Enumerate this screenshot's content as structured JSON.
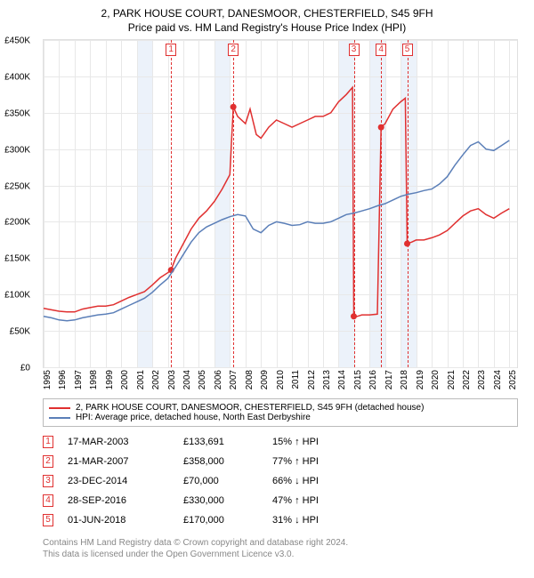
{
  "title": {
    "line1": "2, PARK HOUSE COURT, DANESMOOR, CHESTERFIELD, S45 9FH",
    "line2": "Price paid vs. HM Land Registry's House Price Index (HPI)",
    "fontsize": 12,
    "color": "#000000"
  },
  "chart": {
    "type": "line",
    "background_color": "#ffffff",
    "grid_color": "#e8e8e8",
    "axis_color": "#e0e0e0",
    "shade_color": "#ecf2fa",
    "xlim": [
      1995,
      2025.5
    ],
    "ylim": [
      0,
      450000
    ],
    "ytick_step": 50000,
    "yticks": [
      0,
      50000,
      100000,
      150000,
      200000,
      250000,
      300000,
      350000,
      400000,
      450000
    ],
    "ytick_labels": [
      "£0",
      "£50K",
      "£100K",
      "£150K",
      "£200K",
      "£250K",
      "£300K",
      "£350K",
      "£400K",
      "£450K"
    ],
    "xticks": [
      1995,
      1996,
      1997,
      1998,
      1999,
      2000,
      2001,
      2002,
      2003,
      2004,
      2005,
      2006,
      2007,
      2008,
      2009,
      2010,
      2011,
      2012,
      2013,
      2014,
      2015,
      2016,
      2017,
      2018,
      2019,
      2020,
      2021,
      2022,
      2023,
      2024,
      2025
    ],
    "label_fontsize": 10,
    "shade_bands": [
      [
        2001,
        2002
      ],
      [
        2006,
        2007
      ],
      [
        2014,
        2015
      ],
      [
        2016,
        2017
      ],
      [
        2018,
        2019
      ]
    ],
    "series": [
      {
        "name": "price_paid",
        "color": "#e03030",
        "width": 1.5,
        "legend": "2, PARK HOUSE COURT, DANESMOOR, CHESTERFIELD, S45 9FH (detached house)",
        "points": [
          [
            1995.0,
            81000
          ],
          [
            1995.5,
            79000
          ],
          [
            1996.0,
            77000
          ],
          [
            1996.5,
            76000
          ],
          [
            1997.0,
            76000
          ],
          [
            1997.5,
            80000
          ],
          [
            1998.0,
            82000
          ],
          [
            1998.5,
            84000
          ],
          [
            1999.0,
            84000
          ],
          [
            1999.5,
            86000
          ],
          [
            2000.0,
            91000
          ],
          [
            2000.5,
            96000
          ],
          [
            2001.0,
            100000
          ],
          [
            2001.5,
            104000
          ],
          [
            2002.0,
            113000
          ],
          [
            2002.5,
            123000
          ],
          [
            2003.0,
            130000
          ],
          [
            2003.21,
            133691
          ],
          [
            2003.5,
            150000
          ],
          [
            2004.0,
            170000
          ],
          [
            2004.5,
            190000
          ],
          [
            2005.0,
            205000
          ],
          [
            2005.5,
            215000
          ],
          [
            2006.0,
            228000
          ],
          [
            2006.5,
            245000
          ],
          [
            2007.0,
            265000
          ],
          [
            2007.22,
            358000
          ],
          [
            2007.5,
            345000
          ],
          [
            2008.0,
            335000
          ],
          [
            2008.3,
            355000
          ],
          [
            2008.7,
            320000
          ],
          [
            2009.0,
            315000
          ],
          [
            2009.5,
            330000
          ],
          [
            2010.0,
            340000
          ],
          [
            2010.5,
            335000
          ],
          [
            2011.0,
            330000
          ],
          [
            2011.5,
            335000
          ],
          [
            2012.0,
            340000
          ],
          [
            2012.5,
            345000
          ],
          [
            2013.0,
            345000
          ],
          [
            2013.5,
            350000
          ],
          [
            2014.0,
            365000
          ],
          [
            2014.5,
            375000
          ],
          [
            2014.9,
            385000
          ],
          [
            2014.98,
            70000
          ],
          [
            2015.2,
            70000
          ],
          [
            2015.5,
            72000
          ],
          [
            2016.0,
            72000
          ],
          [
            2016.5,
            73000
          ],
          [
            2016.74,
            330000
          ],
          [
            2017.0,
            335000
          ],
          [
            2017.5,
            355000
          ],
          [
            2018.0,
            365000
          ],
          [
            2018.3,
            370000
          ],
          [
            2018.42,
            170000
          ],
          [
            2018.7,
            172000
          ],
          [
            2019.0,
            175000
          ],
          [
            2019.5,
            175000
          ],
          [
            2020.0,
            178000
          ],
          [
            2020.5,
            182000
          ],
          [
            2021.0,
            188000
          ],
          [
            2021.5,
            198000
          ],
          [
            2022.0,
            208000
          ],
          [
            2022.5,
            215000
          ],
          [
            2023.0,
            218000
          ],
          [
            2023.5,
            210000
          ],
          [
            2024.0,
            205000
          ],
          [
            2024.5,
            212000
          ],
          [
            2025.0,
            218000
          ]
        ],
        "markers": [
          {
            "x": 2003.21,
            "y": 133691
          },
          {
            "x": 2007.22,
            "y": 358000
          },
          {
            "x": 2014.98,
            "y": 70000
          },
          {
            "x": 2016.74,
            "y": 330000
          },
          {
            "x": 2018.42,
            "y": 170000
          }
        ]
      },
      {
        "name": "hpi",
        "color": "#5b7fb8",
        "width": 1.5,
        "legend": "HPI: Average price, detached house, North East Derbyshire",
        "points": [
          [
            1995.0,
            70000
          ],
          [
            1995.5,
            68000
          ],
          [
            1996.0,
            65000
          ],
          [
            1996.5,
            64000
          ],
          [
            1997.0,
            65000
          ],
          [
            1997.5,
            68000
          ],
          [
            1998.0,
            70000
          ],
          [
            1998.5,
            72000
          ],
          [
            1999.0,
            73000
          ],
          [
            1999.5,
            75000
          ],
          [
            2000.0,
            80000
          ],
          [
            2000.5,
            85000
          ],
          [
            2001.0,
            90000
          ],
          [
            2001.5,
            95000
          ],
          [
            2002.0,
            103000
          ],
          [
            2002.5,
            113000
          ],
          [
            2003.0,
            122000
          ],
          [
            2003.5,
            138000
          ],
          [
            2004.0,
            155000
          ],
          [
            2004.5,
            172000
          ],
          [
            2005.0,
            185000
          ],
          [
            2005.5,
            193000
          ],
          [
            2006.0,
            198000
          ],
          [
            2006.5,
            203000
          ],
          [
            2007.0,
            207000
          ],
          [
            2007.5,
            210000
          ],
          [
            2008.0,
            208000
          ],
          [
            2008.5,
            190000
          ],
          [
            2009.0,
            185000
          ],
          [
            2009.5,
            195000
          ],
          [
            2010.0,
            200000
          ],
          [
            2010.5,
            198000
          ],
          [
            2011.0,
            195000
          ],
          [
            2011.5,
            196000
          ],
          [
            2012.0,
            200000
          ],
          [
            2012.5,
            198000
          ],
          [
            2013.0,
            198000
          ],
          [
            2013.5,
            200000
          ],
          [
            2014.0,
            205000
          ],
          [
            2014.5,
            210000
          ],
          [
            2015.0,
            212000
          ],
          [
            2015.5,
            215000
          ],
          [
            2016.0,
            218000
          ],
          [
            2016.5,
            222000
          ],
          [
            2017.0,
            225000
          ],
          [
            2017.5,
            230000
          ],
          [
            2018.0,
            235000
          ],
          [
            2018.5,
            238000
          ],
          [
            2019.0,
            240000
          ],
          [
            2019.5,
            243000
          ],
          [
            2020.0,
            245000
          ],
          [
            2020.5,
            252000
          ],
          [
            2021.0,
            262000
          ],
          [
            2021.5,
            278000
          ],
          [
            2022.0,
            292000
          ],
          [
            2022.5,
            305000
          ],
          [
            2023.0,
            310000
          ],
          [
            2023.5,
            300000
          ],
          [
            2024.0,
            298000
          ],
          [
            2024.5,
            305000
          ],
          [
            2025.0,
            312000
          ]
        ]
      }
    ],
    "sales_markers": [
      {
        "num": "1",
        "x": 2003.21
      },
      {
        "num": "2",
        "x": 2007.22
      },
      {
        "num": "3",
        "x": 2014.98
      },
      {
        "num": "4",
        "x": 2016.74
      },
      {
        "num": "5",
        "x": 2018.42
      }
    ]
  },
  "legend": {
    "border_color": "#bbbbbb",
    "fontsize": 10
  },
  "transactions": {
    "fontsize": 11,
    "rows": [
      {
        "num": "1",
        "date": "17-MAR-2003",
        "price": "£133,691",
        "pct": "15%",
        "dir": "up",
        "vs": "HPI"
      },
      {
        "num": "2",
        "date": "21-MAR-2007",
        "price": "£358,000",
        "pct": "77%",
        "dir": "up",
        "vs": "HPI"
      },
      {
        "num": "3",
        "date": "23-DEC-2014",
        "price": "£70,000",
        "pct": "66%",
        "dir": "down",
        "vs": "HPI"
      },
      {
        "num": "4",
        "date": "28-SEP-2016",
        "price": "£330,000",
        "pct": "47%",
        "dir": "up",
        "vs": "HPI"
      },
      {
        "num": "5",
        "date": "01-JUN-2018",
        "price": "£170,000",
        "pct": "31%",
        "dir": "down",
        "vs": "HPI"
      }
    ]
  },
  "attribution": {
    "line1": "Contains HM Land Registry data © Crown copyright and database right 2024.",
    "line2": "This data is licensed under the Open Government Licence v3.0.",
    "color": "#888888",
    "fontsize": 10
  }
}
